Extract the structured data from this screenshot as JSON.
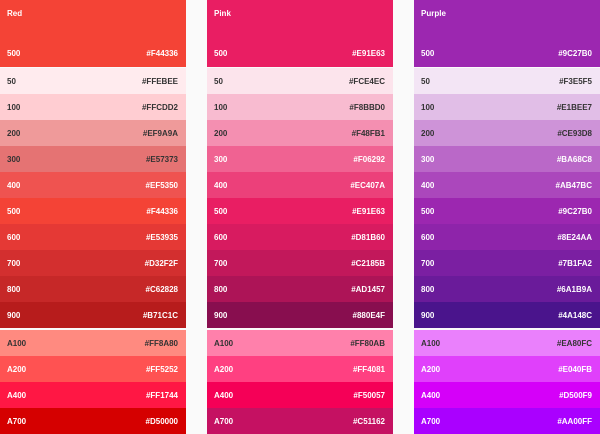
{
  "columns": [
    {
      "name": "Red",
      "primary": {
        "label": "500",
        "hex": "#F44336",
        "text": "#ffffff"
      },
      "shades": [
        {
          "label": "50",
          "hex": "#FFEBEE",
          "text": "#333333"
        },
        {
          "label": "100",
          "hex": "#FFCDD2",
          "text": "#333333"
        },
        {
          "label": "200",
          "hex": "#EF9A9A",
          "text": "#333333"
        },
        {
          "label": "300",
          "hex": "#E57373",
          "text": "#333333"
        },
        {
          "label": "400",
          "hex": "#EF5350",
          "text": "#ffffff"
        },
        {
          "label": "500",
          "hex": "#F44336",
          "text": "#ffffff"
        },
        {
          "label": "600",
          "hex": "#E53935",
          "text": "#ffffff"
        },
        {
          "label": "700",
          "hex": "#D32F2F",
          "text": "#ffffff"
        },
        {
          "label": "800",
          "hex": "#C62828",
          "text": "#ffffff"
        },
        {
          "label": "900",
          "hex": "#B71C1C",
          "text": "#ffffff"
        }
      ],
      "accents": [
        {
          "label": "A100",
          "hex": "#FF8A80",
          "text": "#333333"
        },
        {
          "label": "A200",
          "hex": "#FF5252",
          "text": "#ffffff"
        },
        {
          "label": "A400",
          "hex": "#FF1744",
          "text": "#ffffff"
        },
        {
          "label": "A700",
          "hex": "#D50000",
          "text": "#ffffff"
        }
      ]
    },
    {
      "name": "Pink",
      "primary": {
        "label": "500",
        "hex": "#E91E63",
        "text": "#ffffff"
      },
      "shades": [
        {
          "label": "50",
          "hex": "#FCE4EC",
          "text": "#333333"
        },
        {
          "label": "100",
          "hex": "#F8BBD0",
          "text": "#333333"
        },
        {
          "label": "200",
          "hex": "#F48FB1",
          "text": "#333333"
        },
        {
          "label": "300",
          "hex": "#F06292",
          "text": "#ffffff"
        },
        {
          "label": "400",
          "hex": "#EC407A",
          "text": "#ffffff"
        },
        {
          "label": "500",
          "hex": "#E91E63",
          "text": "#ffffff"
        },
        {
          "label": "600",
          "hex": "#D81B60",
          "text": "#ffffff"
        },
        {
          "label": "700",
          "hex": "#C2185B",
          "text": "#ffffff"
        },
        {
          "label": "800",
          "hex": "#AD1457",
          "text": "#ffffff"
        },
        {
          "label": "900",
          "hex": "#880E4F",
          "text": "#ffffff"
        }
      ],
      "accents": [
        {
          "label": "A100",
          "hex": "#FF80AB",
          "text": "#333333"
        },
        {
          "label": "A200",
          "hex": "#FF4081",
          "text": "#ffffff"
        },
        {
          "label": "A400",
          "hex": "#F50057",
          "text": "#ffffff"
        },
        {
          "label": "A700",
          "hex": "#C51162",
          "text": "#ffffff"
        }
      ]
    },
    {
      "name": "Purple",
      "primary": {
        "label": "500",
        "hex": "#9C27B0",
        "text": "#ffffff"
      },
      "shades": [
        {
          "label": "50",
          "hex": "#F3E5F5",
          "text": "#333333"
        },
        {
          "label": "100",
          "hex": "#E1BEE7",
          "text": "#333333"
        },
        {
          "label": "200",
          "hex": "#CE93D8",
          "text": "#333333"
        },
        {
          "label": "300",
          "hex": "#BA68C8",
          "text": "#ffffff"
        },
        {
          "label": "400",
          "hex": "#AB47BC",
          "text": "#ffffff"
        },
        {
          "label": "500",
          "hex": "#9C27B0",
          "text": "#ffffff"
        },
        {
          "label": "600",
          "hex": "#8E24AA",
          "text": "#ffffff"
        },
        {
          "label": "700",
          "hex": "#7B1FA2",
          "text": "#ffffff"
        },
        {
          "label": "800",
          "hex": "#6A1B9A",
          "text": "#ffffff"
        },
        {
          "label": "900",
          "hex": "#4A148C",
          "text": "#ffffff"
        }
      ],
      "accents": [
        {
          "label": "A100",
          "hex": "#EA80FC",
          "text": "#333333"
        },
        {
          "label": "A200",
          "hex": "#E040FB",
          "text": "#ffffff"
        },
        {
          "label": "A400",
          "hex": "#D500F9",
          "text": "#ffffff"
        },
        {
          "label": "A700",
          "hex": "#AA00FF",
          "text": "#ffffff"
        }
      ]
    }
  ]
}
